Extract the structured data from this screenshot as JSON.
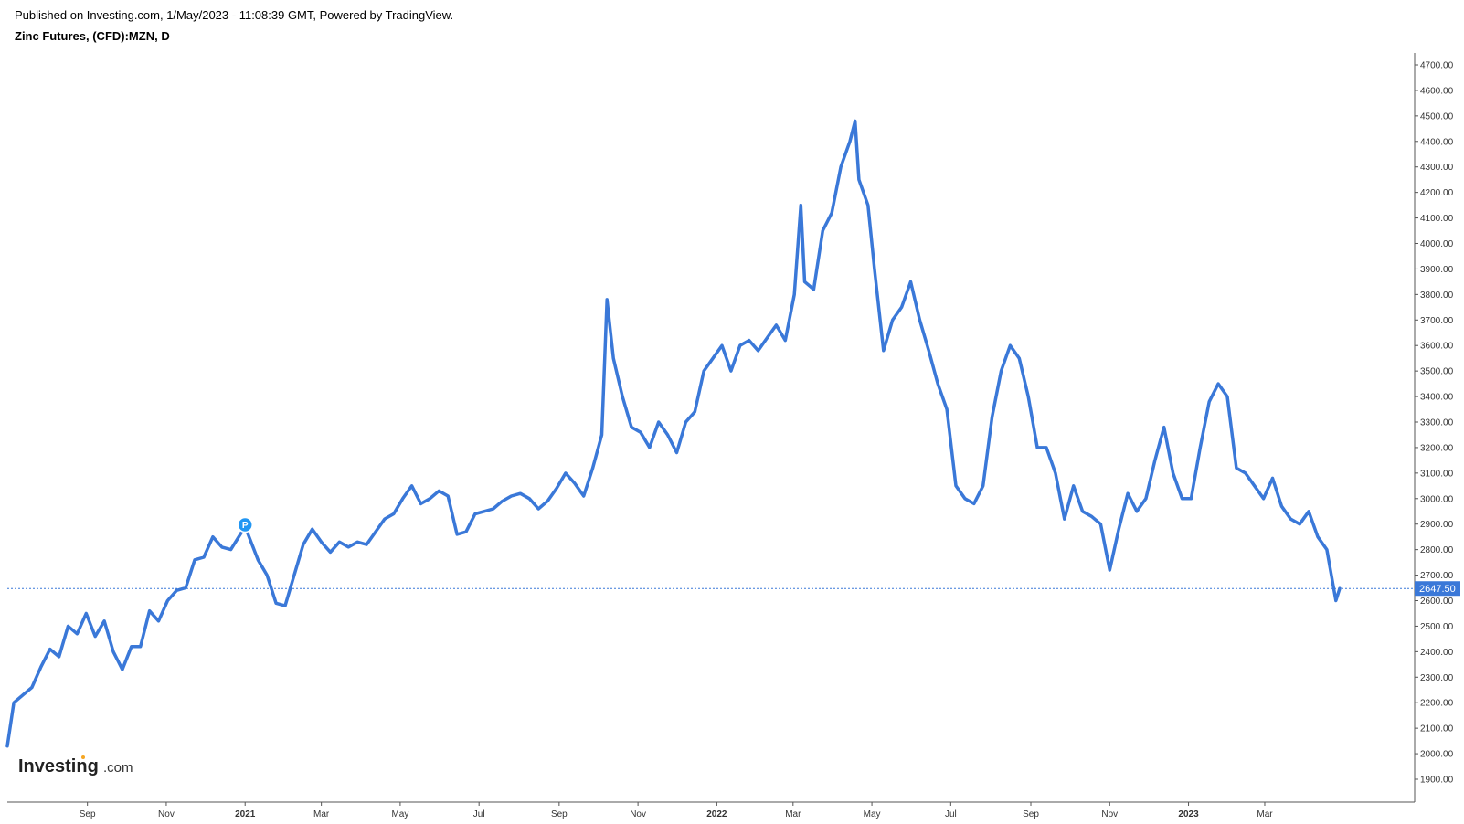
{
  "header": {
    "published": "Published on Investing.com, 1/May/2023 - 11:08:39 GMT, Powered by TradingView.",
    "symbol": "Zinc Futures, (CFD):MZN, D"
  },
  "logo": {
    "main": "Investing",
    "suffix": ".com"
  },
  "marker": {
    "label": "P"
  },
  "colors": {
    "line": "#3a78d8",
    "price_tag_bg": "#3a78d8",
    "price_tag_text": "#ffffff",
    "axis": "#333333"
  },
  "chart_data": {
    "type": "line",
    "title": "Zinc Futures, (CFD):MZN, D",
    "xlabel": "",
    "ylabel": "",
    "ylim": [
      1900,
      4700
    ],
    "y_ticks": [
      "4700.00",
      "4600.00",
      "4500.00",
      "4400.00",
      "4300.00",
      "4200.00",
      "4100.00",
      "4000.00",
      "3900.00",
      "3800.00",
      "3700.00",
      "3600.00",
      "3500.00",
      "3400.00",
      "3300.00",
      "3200.00",
      "3100.00",
      "3000.00",
      "2900.00",
      "2800.00",
      "2700.00",
      "2600.00",
      "2500.00",
      "2400.00",
      "2300.00",
      "2200.00",
      "2100.00",
      "2000.00",
      "1900.00"
    ],
    "x_ticks": [
      {
        "label": "Sep",
        "date": "2020-09-01",
        "bold": false
      },
      {
        "label": "Nov",
        "date": "2020-11-01",
        "bold": false
      },
      {
        "label": "2021",
        "date": "2021-01-01",
        "bold": true
      },
      {
        "label": "Mar",
        "date": "2021-03-01",
        "bold": false
      },
      {
        "label": "May",
        "date": "2021-05-01",
        "bold": false
      },
      {
        "label": "Jul",
        "date": "2021-07-01",
        "bold": false
      },
      {
        "label": "Sep",
        "date": "2021-09-01",
        "bold": false
      },
      {
        "label": "Nov",
        "date": "2021-11-01",
        "bold": false
      },
      {
        "label": "2022",
        "date": "2022-01-01",
        "bold": true
      },
      {
        "label": "Mar",
        "date": "2022-03-01",
        "bold": false
      },
      {
        "label": "May",
        "date": "2022-05-01",
        "bold": false
      },
      {
        "label": "Jul",
        "date": "2022-07-01",
        "bold": false
      },
      {
        "label": "Sep",
        "date": "2022-09-01",
        "bold": false
      },
      {
        "label": "Nov",
        "date": "2022-11-01",
        "bold": false
      },
      {
        "label": "2023",
        "date": "2023-01-01",
        "bold": true
      },
      {
        "label": "Mar",
        "date": "2023-03-01",
        "bold": false
      }
    ],
    "last_price": {
      "value": 2647.5,
      "label": "2647.50"
    },
    "marker_point": {
      "date": "2021-01-01",
      "value": 2890
    },
    "series": [
      {
        "points": [
          [
            "2020-07-01",
            2030
          ],
          [
            "2020-07-06",
            2200
          ],
          [
            "2020-07-13",
            2230
          ],
          [
            "2020-07-20",
            2260
          ],
          [
            "2020-07-27",
            2340
          ],
          [
            "2020-08-03",
            2410
          ],
          [
            "2020-08-10",
            2380
          ],
          [
            "2020-08-17",
            2500
          ],
          [
            "2020-08-24",
            2470
          ],
          [
            "2020-08-31",
            2550
          ],
          [
            "2020-09-07",
            2460
          ],
          [
            "2020-09-14",
            2520
          ],
          [
            "2020-09-21",
            2400
          ],
          [
            "2020-09-28",
            2330
          ],
          [
            "2020-10-05",
            2420
          ],
          [
            "2020-10-12",
            2420
          ],
          [
            "2020-10-19",
            2560
          ],
          [
            "2020-10-26",
            2520
          ],
          [
            "2020-11-02",
            2600
          ],
          [
            "2020-11-09",
            2640
          ],
          [
            "2020-11-16",
            2650
          ],
          [
            "2020-11-23",
            2760
          ],
          [
            "2020-11-30",
            2770
          ],
          [
            "2020-12-07",
            2850
          ],
          [
            "2020-12-14",
            2810
          ],
          [
            "2020-12-21",
            2800
          ],
          [
            "2021-01-01",
            2890
          ],
          [
            "2021-01-11",
            2760
          ],
          [
            "2021-01-18",
            2700
          ],
          [
            "2021-01-25",
            2590
          ],
          [
            "2021-02-01",
            2580
          ],
          [
            "2021-02-08",
            2700
          ],
          [
            "2021-02-15",
            2820
          ],
          [
            "2021-02-22",
            2880
          ],
          [
            "2021-03-01",
            2830
          ],
          [
            "2021-03-08",
            2790
          ],
          [
            "2021-03-15",
            2830
          ],
          [
            "2021-03-22",
            2810
          ],
          [
            "2021-03-29",
            2830
          ],
          [
            "2021-04-05",
            2820
          ],
          [
            "2021-04-12",
            2870
          ],
          [
            "2021-04-19",
            2920
          ],
          [
            "2021-04-26",
            2940
          ],
          [
            "2021-05-03",
            3000
          ],
          [
            "2021-05-10",
            3050
          ],
          [
            "2021-05-17",
            2980
          ],
          [
            "2021-05-24",
            3000
          ],
          [
            "2021-05-31",
            3030
          ],
          [
            "2021-06-07",
            3010
          ],
          [
            "2021-06-14",
            2860
          ],
          [
            "2021-06-21",
            2870
          ],
          [
            "2021-06-28",
            2940
          ],
          [
            "2021-07-05",
            2950
          ],
          [
            "2021-07-12",
            2960
          ],
          [
            "2021-07-19",
            2990
          ],
          [
            "2021-07-26",
            3010
          ],
          [
            "2021-08-02",
            3020
          ],
          [
            "2021-08-09",
            3000
          ],
          [
            "2021-08-16",
            2960
          ],
          [
            "2021-08-23",
            2990
          ],
          [
            "2021-08-30",
            3040
          ],
          [
            "2021-09-06",
            3100
          ],
          [
            "2021-09-13",
            3060
          ],
          [
            "2021-09-20",
            3010
          ],
          [
            "2021-09-27",
            3120
          ],
          [
            "2021-10-04",
            3250
          ],
          [
            "2021-10-08",
            3780
          ],
          [
            "2021-10-13",
            3550
          ],
          [
            "2021-10-20",
            3400
          ],
          [
            "2021-10-27",
            3280
          ],
          [
            "2021-11-03",
            3260
          ],
          [
            "2021-11-10",
            3200
          ],
          [
            "2021-11-17",
            3300
          ],
          [
            "2021-11-24",
            3250
          ],
          [
            "2021-12-01",
            3180
          ],
          [
            "2021-12-08",
            3300
          ],
          [
            "2021-12-15",
            3340
          ],
          [
            "2021-12-22",
            3500
          ],
          [
            "2021-12-29",
            3550
          ],
          [
            "2022-01-05",
            3600
          ],
          [
            "2022-01-12",
            3500
          ],
          [
            "2022-01-19",
            3600
          ],
          [
            "2022-01-26",
            3620
          ],
          [
            "2022-02-02",
            3580
          ],
          [
            "2022-02-09",
            3630
          ],
          [
            "2022-02-16",
            3680
          ],
          [
            "2022-02-23",
            3620
          ],
          [
            "2022-03-02",
            3800
          ],
          [
            "2022-03-07",
            4150
          ],
          [
            "2022-03-10",
            3850
          ],
          [
            "2022-03-17",
            3820
          ],
          [
            "2022-03-24",
            4050
          ],
          [
            "2022-03-31",
            4120
          ],
          [
            "2022-04-07",
            4300
          ],
          [
            "2022-04-14",
            4400
          ],
          [
            "2022-04-18",
            4480
          ],
          [
            "2022-04-21",
            4250
          ],
          [
            "2022-04-28",
            4150
          ],
          [
            "2022-05-03",
            3900
          ],
          [
            "2022-05-10",
            3580
          ],
          [
            "2022-05-17",
            3700
          ],
          [
            "2022-05-24",
            3750
          ],
          [
            "2022-05-31",
            3850
          ],
          [
            "2022-06-07",
            3700
          ],
          [
            "2022-06-14",
            3580
          ],
          [
            "2022-06-21",
            3450
          ],
          [
            "2022-06-28",
            3350
          ],
          [
            "2022-07-05",
            3050
          ],
          [
            "2022-07-12",
            3000
          ],
          [
            "2022-07-19",
            2980
          ],
          [
            "2022-07-26",
            3050
          ],
          [
            "2022-08-02",
            3320
          ],
          [
            "2022-08-09",
            3500
          ],
          [
            "2022-08-16",
            3600
          ],
          [
            "2022-08-23",
            3550
          ],
          [
            "2022-08-30",
            3400
          ],
          [
            "2022-09-06",
            3200
          ],
          [
            "2022-09-13",
            3200
          ],
          [
            "2022-09-20",
            3100
          ],
          [
            "2022-09-27",
            2920
          ],
          [
            "2022-10-04",
            3050
          ],
          [
            "2022-10-11",
            2950
          ],
          [
            "2022-10-18",
            2930
          ],
          [
            "2022-10-25",
            2900
          ],
          [
            "2022-11-01",
            2720
          ],
          [
            "2022-11-08",
            2880
          ],
          [
            "2022-11-15",
            3020
          ],
          [
            "2022-11-22",
            2950
          ],
          [
            "2022-11-29",
            3000
          ],
          [
            "2022-12-06",
            3150
          ],
          [
            "2022-12-13",
            3280
          ],
          [
            "2022-12-20",
            3100
          ],
          [
            "2022-12-27",
            3000
          ],
          [
            "2023-01-03",
            3000
          ],
          [
            "2023-01-10",
            3200
          ],
          [
            "2023-01-17",
            3380
          ],
          [
            "2023-01-24",
            3450
          ],
          [
            "2023-01-31",
            3400
          ],
          [
            "2023-02-07",
            3120
          ],
          [
            "2023-02-14",
            3100
          ],
          [
            "2023-02-21",
            3050
          ],
          [
            "2023-02-28",
            3000
          ],
          [
            "2023-03-07",
            3080
          ],
          [
            "2023-03-14",
            2970
          ],
          [
            "2023-03-21",
            2920
          ],
          [
            "2023-03-28",
            2900
          ],
          [
            "2023-04-04",
            2950
          ],
          [
            "2023-04-11",
            2850
          ],
          [
            "2023-04-18",
            2800
          ],
          [
            "2023-04-25",
            2600
          ],
          [
            "2023-04-28",
            2647.5
          ]
        ]
      }
    ]
  }
}
